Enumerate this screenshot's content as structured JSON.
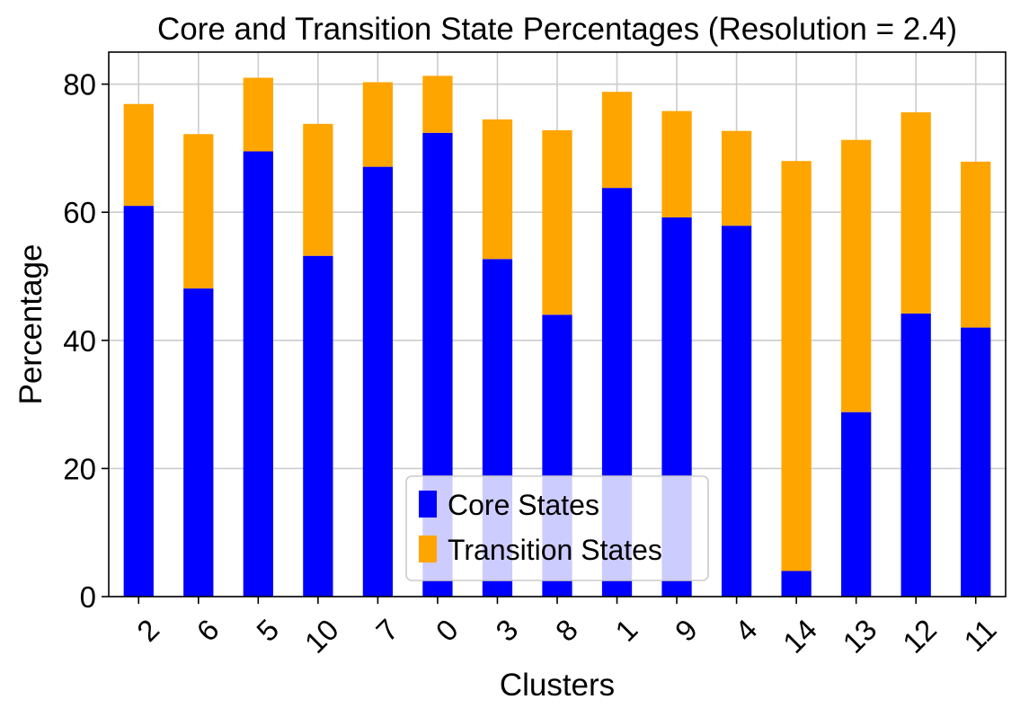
{
  "chart_data": {
    "type": "bar",
    "stacked": true,
    "title": "Core and Transition State Percentages (Resolution = 2.4)",
    "xlabel": "Clusters",
    "ylabel": "Percentage",
    "categories": [
      "2",
      "6",
      "5",
      "10",
      "7",
      "0",
      "3",
      "8",
      "1",
      "9",
      "4",
      "14",
      "13",
      "12",
      "11"
    ],
    "series": [
      {
        "name": "Core States",
        "color": "#0000ff",
        "values": [
          61.0,
          48.1,
          69.5,
          53.2,
          67.1,
          72.4,
          52.7,
          44.0,
          63.8,
          59.2,
          57.9,
          4.0,
          28.8,
          44.2,
          42.0
        ]
      },
      {
        "name": "Transition States",
        "color": "#ffa500",
        "values": [
          15.9,
          24.1,
          11.5,
          20.6,
          13.2,
          8.9,
          21.8,
          28.8,
          15.0,
          16.6,
          14.8,
          64.0,
          42.5,
          31.4,
          25.9
        ]
      }
    ],
    "ylim": [
      0,
      85
    ],
    "yticks": [
      0,
      20,
      40,
      60,
      80
    ],
    "grid": true,
    "legend_position": "bottom-center"
  }
}
